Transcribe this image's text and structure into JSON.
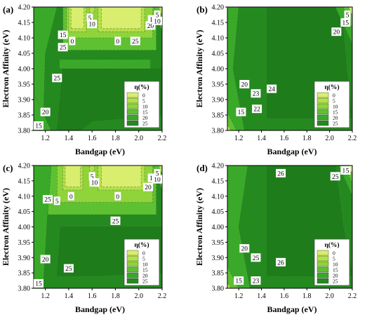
{
  "colors": {
    "level_0": "#d9ee6e",
    "level_5": "#b4e04a",
    "level_10": "#8fd43a",
    "level_15": "#5dc132",
    "level_20": "#3aa92a",
    "level_25": "#248a1f",
    "level_26": "#1e7c1b"
  },
  "legend": {
    "title": "η(%)",
    "entries": [
      "0",
      "5",
      "10",
      "15",
      "20",
      "25"
    ]
  },
  "chart_data": [
    {
      "panel_label": "(a)",
      "type": "heatmap",
      "xlabel": "Bandgap (eV)",
      "ylabel": "Electron Affinity (eV)",
      "xlim": [
        1.1,
        2.2
      ],
      "ylim": [
        3.8,
        4.2
      ],
      "x_ticks": [
        "1.2",
        "1.4",
        "1.6",
        "1.8",
        "2.0",
        "2.2"
      ],
      "y_ticks": [
        "3.80",
        "3.85",
        "3.90",
        "3.95",
        "4.00",
        "4.05",
        "4.10",
        "4.15",
        "4.20"
      ],
      "contour_labels": [
        {
          "text": "15",
          "x": 1.12,
          "y": 3.81
        },
        {
          "text": "20",
          "x": 1.2,
          "y": 3.86
        },
        {
          "text": "25",
          "x": 1.3,
          "y": 3.97
        },
        {
          "text": "25",
          "x": 1.35,
          "y": 4.07
        },
        {
          "text": "15",
          "x": 1.35,
          "y": 4.11
        },
        {
          "text": "0",
          "x": 1.43,
          "y": 4.09
        },
        {
          "text": "5",
          "x": 1.58,
          "y": 4.165
        },
        {
          "text": "10",
          "x": 1.6,
          "y": 4.145
        },
        {
          "text": "0",
          "x": 1.82,
          "y": 4.09
        },
        {
          "text": "25",
          "x": 1.97,
          "y": 4.09
        },
        {
          "text": "20",
          "x": 2.1,
          "y": 4.14
        },
        {
          "text": "15",
          "x": 2.12,
          "y": 4.16
        },
        {
          "text": "10",
          "x": 2.2,
          "y": 4.155
        },
        {
          "text": "5",
          "x": 2.2,
          "y": 4.175
        }
      ]
    },
    {
      "panel_label": "(b)",
      "type": "heatmap",
      "xlabel": "Bandgap (eV)",
      "ylabel": "Electron Affinity (eV)",
      "xlim": [
        1.1,
        2.2
      ],
      "ylim": [
        3.8,
        4.2
      ],
      "x_ticks": [
        "1.2",
        "1.4",
        "1.6",
        "1.8",
        "2.0",
        "2.2"
      ],
      "y_ticks": [
        "3.80",
        "3.85",
        "3.90",
        "3.95",
        "4.00",
        "4.05",
        "4.10",
        "4.15",
        "4.20"
      ],
      "contour_labels": [
        {
          "text": "15",
          "x": 1.22,
          "y": 3.86
        },
        {
          "text": "20",
          "x": 1.25,
          "y": 3.95
        },
        {
          "text": "23",
          "x": 1.35,
          "y": 3.92
        },
        {
          "text": "22",
          "x": 1.36,
          "y": 3.87
        },
        {
          "text": "24",
          "x": 1.49,
          "y": 3.935
        },
        {
          "text": "20",
          "x": 2.06,
          "y": 4.12
        },
        {
          "text": "15",
          "x": 2.14,
          "y": 4.15
        },
        {
          "text": "5",
          "x": 2.2,
          "y": 4.175
        }
      ]
    },
    {
      "panel_label": "(c)",
      "type": "heatmap",
      "xlabel": "Bandgap (eV)",
      "ylabel": "Electron Affinity (eV)",
      "xlim": [
        1.1,
        2.2
      ],
      "ylim": [
        3.8,
        4.2
      ],
      "x_ticks": [
        "1.2",
        "1.4",
        "1.6",
        "1.8",
        "2.0",
        "2.2"
      ],
      "y_ticks": [
        "3.80",
        "3.85",
        "3.90",
        "3.95",
        "4.00",
        "4.05",
        "4.10",
        "4.15",
        "4.20"
      ],
      "contour_labels": [
        {
          "text": "15",
          "x": 1.12,
          "y": 3.81
        },
        {
          "text": "20",
          "x": 1.2,
          "y": 3.895
        },
        {
          "text": "25",
          "x": 1.4,
          "y": 3.865
        },
        {
          "text": "25",
          "x": 1.22,
          "y": 4.09
        },
        {
          "text": "5",
          "x": 1.3,
          "y": 4.085
        },
        {
          "text": "0",
          "x": 1.42,
          "y": 4.1
        },
        {
          "text": "5",
          "x": 1.6,
          "y": 4.165
        },
        {
          "text": "10",
          "x": 1.62,
          "y": 4.145
        },
        {
          "text": "0",
          "x": 1.82,
          "y": 4.1
        },
        {
          "text": "25",
          "x": 1.8,
          "y": 4.02
        },
        {
          "text": "20",
          "x": 2.08,
          "y": 4.13
        },
        {
          "text": "15",
          "x": 2.12,
          "y": 4.16
        },
        {
          "text": "10",
          "x": 2.2,
          "y": 4.155
        },
        {
          "text": "5",
          "x": 2.2,
          "y": 4.175
        }
      ]
    },
    {
      "panel_label": "(d)",
      "type": "heatmap",
      "xlabel": "Bandgap (eV)",
      "ylabel": "Electron Affinity (eV)",
      "xlim": [
        1.1,
        2.2
      ],
      "ylim": [
        3.8,
        4.2
      ],
      "x_ticks": [
        "1.2",
        "1.4",
        "1.6",
        "1.8",
        "2.0",
        "2.2"
      ],
      "y_ticks": [
        "3.80",
        "3.85",
        "3.90",
        "3.95",
        "4.00",
        "4.05",
        "4.10",
        "4.15",
        "4.20"
      ],
      "contour_labels": [
        {
          "text": "15",
          "x": 1.2,
          "y": 3.825
        },
        {
          "text": "20",
          "x": 1.25,
          "y": 3.93
        },
        {
          "text": "25",
          "x": 1.35,
          "y": 3.9
        },
        {
          "text": "23",
          "x": 1.35,
          "y": 3.825
        },
        {
          "text": "26",
          "x": 1.57,
          "y": 3.885
        },
        {
          "text": "26",
          "x": 1.57,
          "y": 4.175
        },
        {
          "text": "25",
          "x": 2.05,
          "y": 4.165
        },
        {
          "text": "15",
          "x": 2.14,
          "y": 4.185
        },
        {
          "text": "5",
          "x": 2.2,
          "y": 4.195
        }
      ]
    }
  ]
}
